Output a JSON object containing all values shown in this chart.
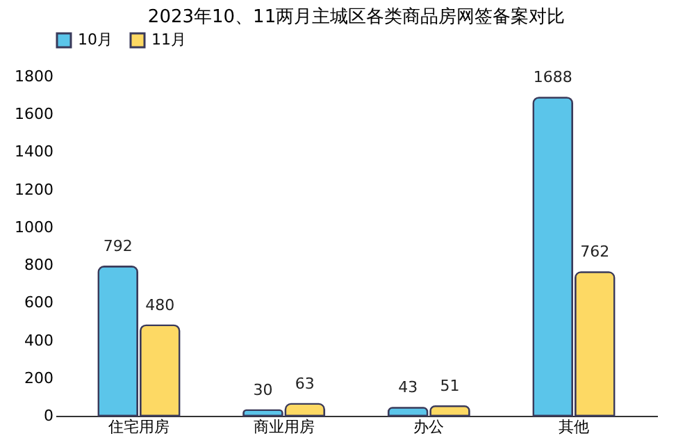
{
  "chart_data": {
    "type": "bar",
    "title": "2023年10、11两月主城区各类商品房网签备案对比",
    "categories": [
      "住宅用房",
      "商业用房",
      "办公",
      "其他"
    ],
    "series": [
      {
        "name": "10月",
        "color": "#5bc5ea",
        "values": [
          792,
          30,
          43,
          1688
        ]
      },
      {
        "name": "11月",
        "color": "#fdd964",
        "values": [
          480,
          63,
          51,
          762
        ]
      }
    ],
    "ylim": [
      0,
      1800
    ],
    "yticks": [
      0,
      200,
      400,
      600,
      800,
      1000,
      1200,
      1400,
      1600,
      1800
    ],
    "grid": false,
    "legend": "top",
    "data_labels": true
  }
}
